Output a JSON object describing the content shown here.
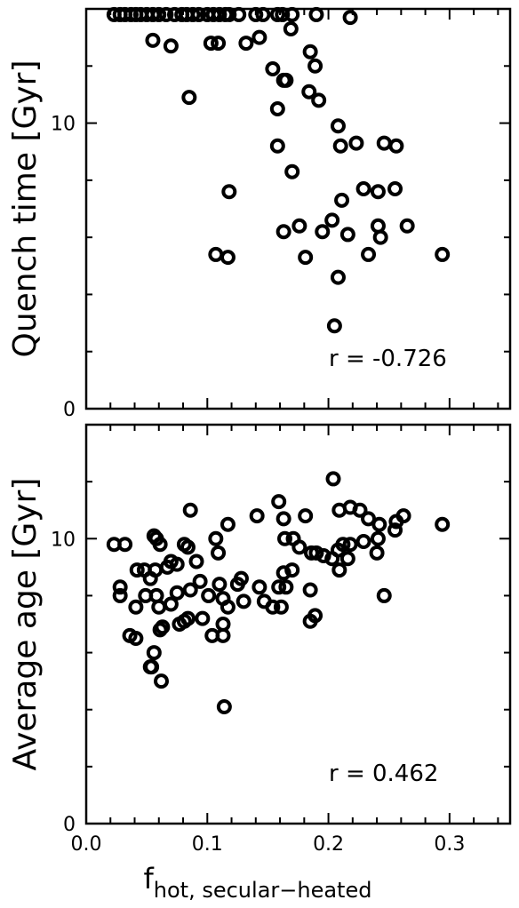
{
  "colors": {
    "marker": "#000000",
    "background": "#ffffff",
    "axes": "#000000"
  },
  "xlabel_main": "f",
  "xlabel_sub": "hot, secular−heated",
  "chart_data": [
    {
      "type": "scatter",
      "ylabel": "Quench time [Gyr]",
      "annotation": "r = -0.726",
      "xlim": [
        0.0,
        0.35
      ],
      "ylim": [
        0,
        14
      ],
      "x_ticks": [],
      "y_ticks": [
        "0",
        "10"
      ],
      "points": [
        [
          0.023,
          13.8
        ],
        [
          0.028,
          13.8
        ],
        [
          0.032,
          13.8
        ],
        [
          0.037,
          13.8
        ],
        [
          0.041,
          13.8
        ],
        [
          0.045,
          13.8
        ],
        [
          0.05,
          13.8
        ],
        [
          0.055,
          13.8
        ],
        [
          0.06,
          13.8
        ],
        [
          0.066,
          13.8
        ],
        [
          0.073,
          13.8
        ],
        [
          0.079,
          13.8
        ],
        [
          0.083,
          13.8
        ],
        [
          0.088,
          13.8
        ],
        [
          0.093,
          13.8
        ],
        [
          0.1,
          13.8
        ],
        [
          0.105,
          13.8
        ],
        [
          0.11,
          13.8
        ],
        [
          0.115,
          13.8
        ],
        [
          0.118,
          13.8
        ],
        [
          0.126,
          13.8
        ],
        [
          0.14,
          13.8
        ],
        [
          0.146,
          13.8
        ],
        [
          0.158,
          13.8
        ],
        [
          0.162,
          13.8
        ],
        [
          0.17,
          13.8
        ],
        [
          0.19,
          13.8
        ],
        [
          0.055,
          12.9
        ],
        [
          0.07,
          12.7
        ],
        [
          0.103,
          12.8
        ],
        [
          0.109,
          12.8
        ],
        [
          0.132,
          12.8
        ],
        [
          0.143,
          13.0
        ],
        [
          0.169,
          13.3
        ],
        [
          0.218,
          13.7
        ],
        [
          0.185,
          12.5
        ],
        [
          0.189,
          12.0
        ],
        [
          0.154,
          11.9
        ],
        [
          0.163,
          11.5
        ],
        [
          0.165,
          11.5
        ],
        [
          0.184,
          11.1
        ],
        [
          0.192,
          10.8
        ],
        [
          0.085,
          10.9
        ],
        [
          0.158,
          10.5
        ],
        [
          0.208,
          9.9
        ],
        [
          0.158,
          9.2
        ],
        [
          0.21,
          9.2
        ],
        [
          0.223,
          9.3
        ],
        [
          0.246,
          9.3
        ],
        [
          0.256,
          9.2
        ],
        [
          0.17,
          8.3
        ],
        [
          0.118,
          7.6
        ],
        [
          0.211,
          7.3
        ],
        [
          0.229,
          7.7
        ],
        [
          0.241,
          7.6
        ],
        [
          0.255,
          7.7
        ],
        [
          0.176,
          6.4
        ],
        [
          0.203,
          6.6
        ],
        [
          0.163,
          6.2
        ],
        [
          0.195,
          6.2
        ],
        [
          0.216,
          6.1
        ],
        [
          0.241,
          6.4
        ],
        [
          0.243,
          6.0
        ],
        [
          0.265,
          6.4
        ],
        [
          0.107,
          5.4
        ],
        [
          0.117,
          5.3
        ],
        [
          0.181,
          5.3
        ],
        [
          0.233,
          5.4
        ],
        [
          0.294,
          5.4
        ],
        [
          0.208,
          4.6
        ],
        [
          0.205,
          2.9
        ]
      ]
    },
    {
      "type": "scatter",
      "ylabel": "Average age [Gyr]",
      "annotation": "r = 0.462",
      "xlim": [
        0.0,
        0.35
      ],
      "ylim": [
        0,
        14
      ],
      "x_ticks": [
        "0.0",
        "0.1",
        "0.2",
        "0.3"
      ],
      "y_ticks": [
        "0",
        "10"
      ],
      "points": [
        [
          0.204,
          12.1
        ],
        [
          0.159,
          11.3
        ],
        [
          0.086,
          11.0
        ],
        [
          0.218,
          11.1
        ],
        [
          0.209,
          11.0
        ],
        [
          0.226,
          11.0
        ],
        [
          0.262,
          10.8
        ],
        [
          0.141,
          10.8
        ],
        [
          0.163,
          10.7
        ],
        [
          0.181,
          10.8
        ],
        [
          0.233,
          10.7
        ],
        [
          0.256,
          10.6
        ],
        [
          0.294,
          10.5
        ],
        [
          0.117,
          10.5
        ],
        [
          0.242,
          10.5
        ],
        [
          0.255,
          10.3
        ],
        [
          0.056,
          10.1
        ],
        [
          0.058,
          10.0
        ],
        [
          0.107,
          10.0
        ],
        [
          0.164,
          10.0
        ],
        [
          0.171,
          10.0
        ],
        [
          0.023,
          9.8
        ],
        [
          0.032,
          9.8
        ],
        [
          0.061,
          9.8
        ],
        [
          0.081,
          9.8
        ],
        [
          0.176,
          9.7
        ],
        [
          0.212,
          9.8
        ],
        [
          0.218,
          9.8
        ],
        [
          0.241,
          10.0
        ],
        [
          0.208,
          9.6
        ],
        [
          0.229,
          9.9
        ],
        [
          0.084,
          9.7
        ],
        [
          0.109,
          9.5
        ],
        [
          0.186,
          9.5
        ],
        [
          0.19,
          9.5
        ],
        [
          0.196,
          9.4
        ],
        [
          0.203,
          9.3
        ],
        [
          0.216,
          9.3
        ],
        [
          0.24,
          9.5
        ],
        [
          0.091,
          9.2
        ],
        [
          0.042,
          8.9
        ],
        [
          0.048,
          8.9
        ],
        [
          0.057,
          8.9
        ],
        [
          0.067,
          9.0
        ],
        [
          0.075,
          9.1
        ],
        [
          0.07,
          9.2
        ],
        [
          0.163,
          8.8
        ],
        [
          0.17,
          8.9
        ],
        [
          0.209,
          8.9
        ],
        [
          0.053,
          8.6
        ],
        [
          0.094,
          8.5
        ],
        [
          0.11,
          8.4
        ],
        [
          0.125,
          8.4
        ],
        [
          0.128,
          8.6
        ],
        [
          0.028,
          8.3
        ],
        [
          0.143,
          8.3
        ],
        [
          0.159,
          8.3
        ],
        [
          0.165,
          8.3
        ],
        [
          0.185,
          8.2
        ],
        [
          0.049,
          8.0
        ],
        [
          0.058,
          8.0
        ],
        [
          0.075,
          8.1
        ],
        [
          0.086,
          8.2
        ],
        [
          0.101,
          8.0
        ],
        [
          0.028,
          8.0
        ],
        [
          0.113,
          7.9
        ],
        [
          0.13,
          7.8
        ],
        [
          0.147,
          7.8
        ],
        [
          0.154,
          7.6
        ],
        [
          0.161,
          7.6
        ],
        [
          0.041,
          7.6
        ],
        [
          0.06,
          7.6
        ],
        [
          0.07,
          7.7
        ],
        [
          0.117,
          7.6
        ],
        [
          0.096,
          7.2
        ],
        [
          0.081,
          7.1
        ],
        [
          0.077,
          7.0
        ],
        [
          0.084,
          7.2
        ],
        [
          0.113,
          7.0
        ],
        [
          0.189,
          7.3
        ],
        [
          0.185,
          7.1
        ],
        [
          0.061,
          6.8
        ],
        [
          0.063,
          6.9
        ],
        [
          0.036,
          6.6
        ],
        [
          0.041,
          6.5
        ],
        [
          0.104,
          6.6
        ],
        [
          0.113,
          6.6
        ],
        [
          0.246,
          8.0
        ],
        [
          0.056,
          6.0
        ],
        [
          0.053,
          5.5
        ],
        [
          0.054,
          5.5
        ],
        [
          0.062,
          5.0
        ],
        [
          0.114,
          4.1
        ]
      ]
    }
  ]
}
